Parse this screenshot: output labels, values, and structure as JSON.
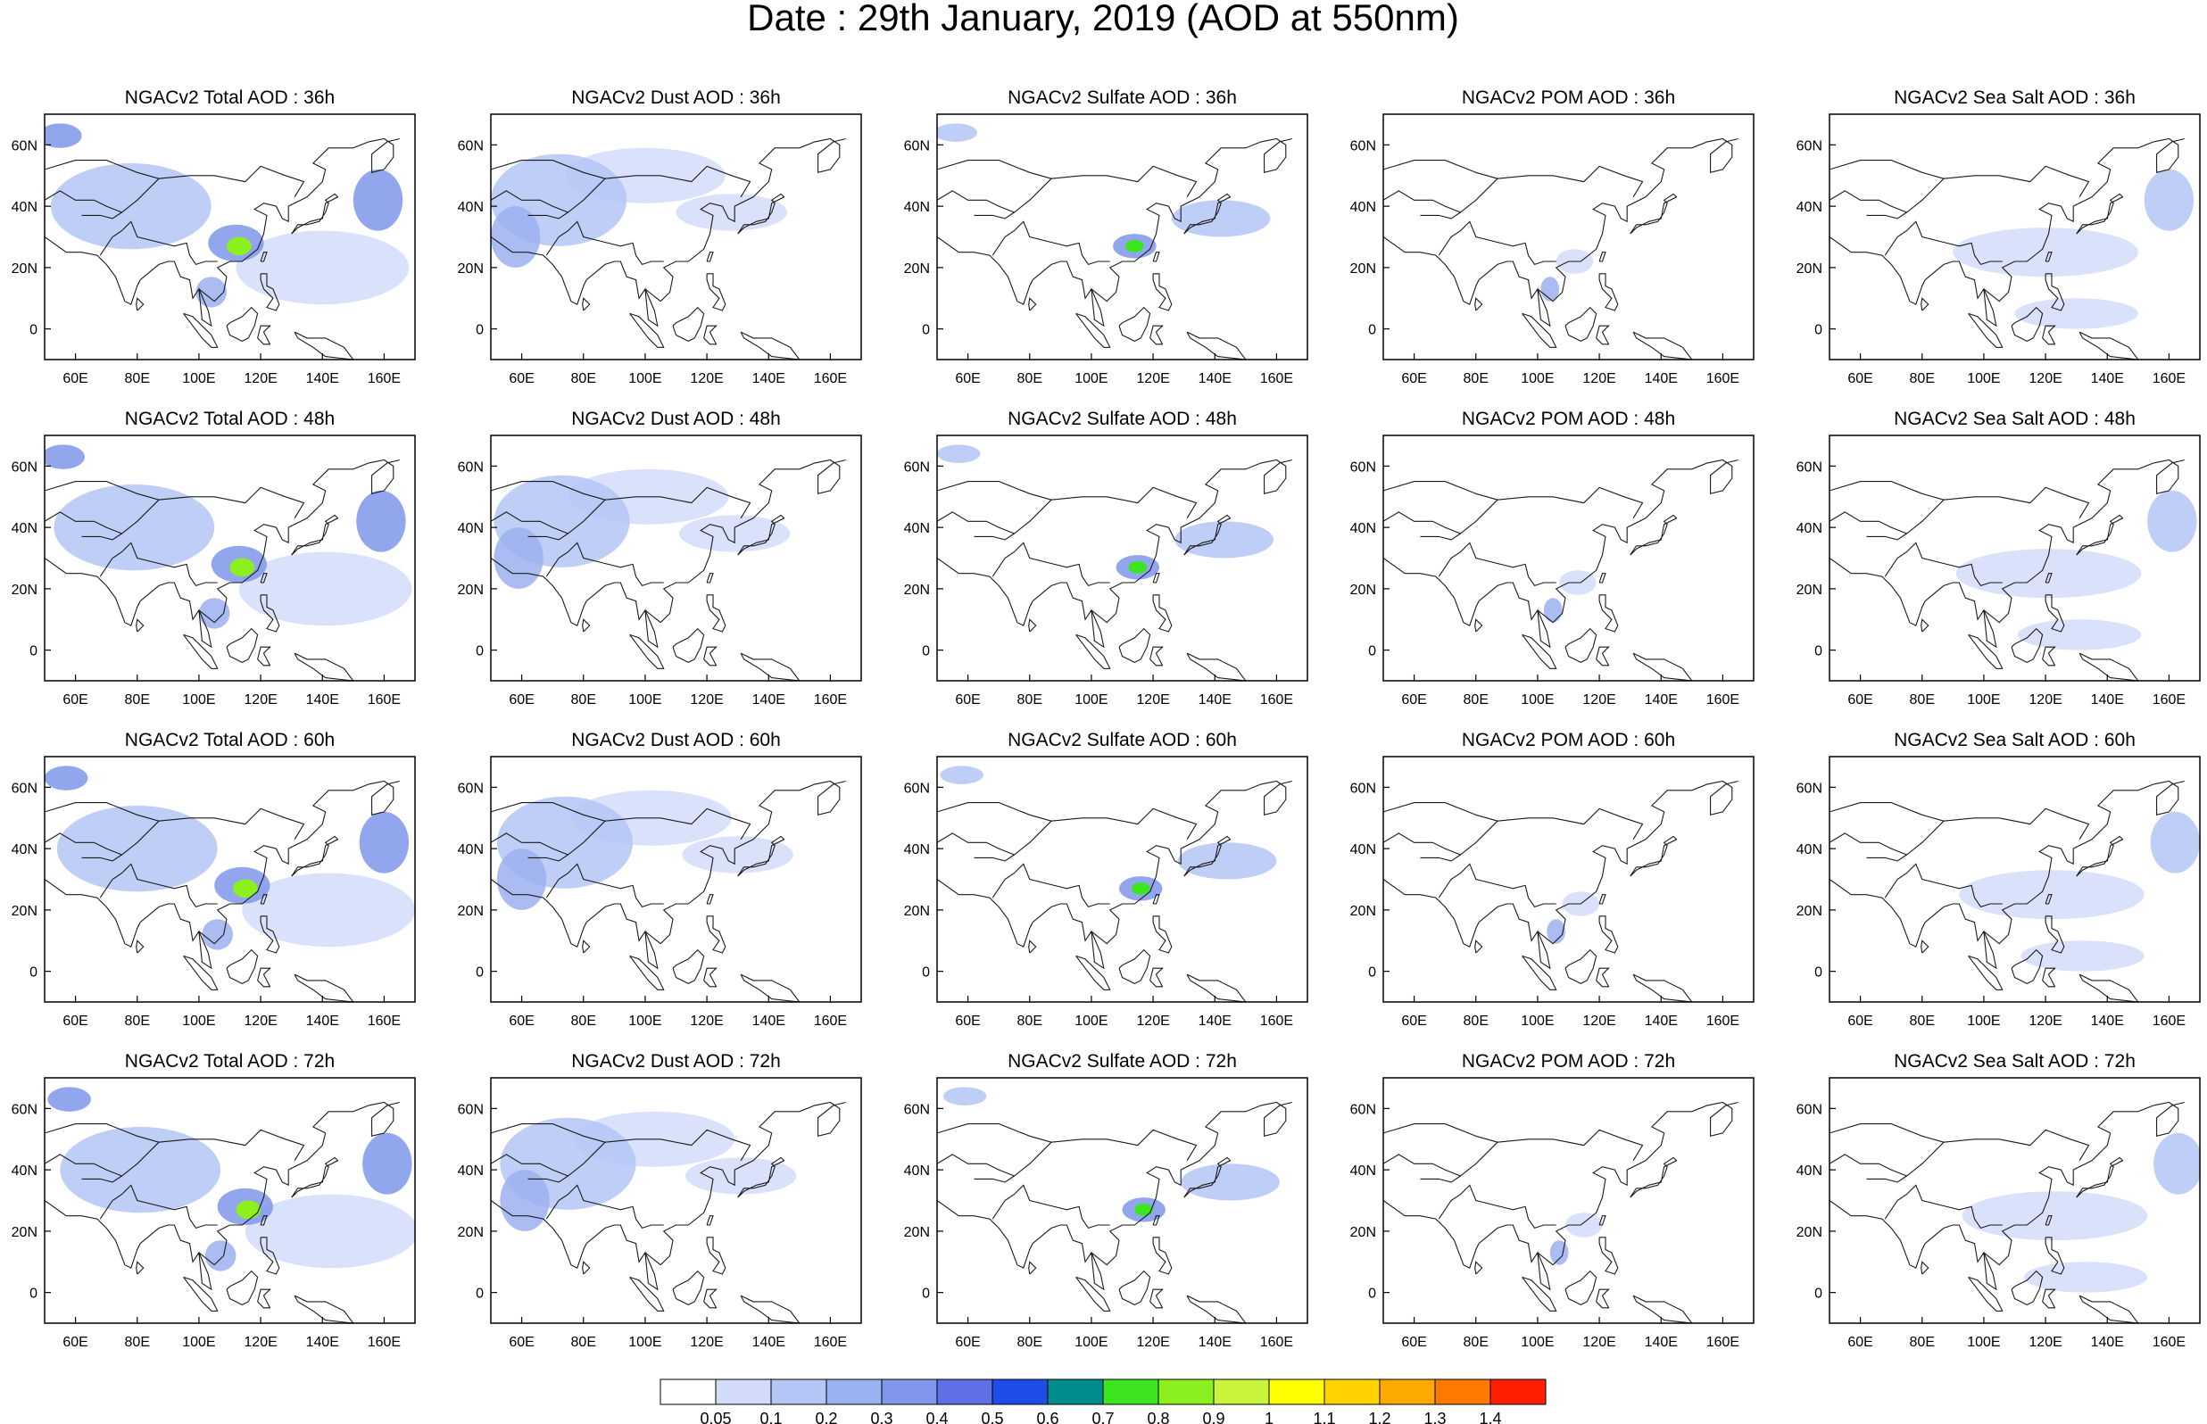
{
  "figure": {
    "title": "Date : 29th January, 2019 (AOD at 550nm)"
  },
  "axes": {
    "lon_ticks": [
      "60E",
      "80E",
      "100E",
      "120E",
      "140E",
      "160E"
    ],
    "lon_values": [
      60,
      80,
      100,
      120,
      140,
      160
    ],
    "lat_ticks": [
      "60N",
      "40N",
      "20N",
      "0"
    ],
    "lat_values": [
      60,
      40,
      20,
      0
    ],
    "lon_range": [
      50,
      170
    ],
    "lat_range": [
      -10,
      70
    ]
  },
  "columns": [
    {
      "key": "total",
      "label": "Total",
      "titles": [
        "NGACv2 Total AOD : 36h",
        "NGACv2 Total AOD : 48h",
        "NGACv2 Total AOD : 60h",
        "NGACv2 Total AOD : 72h"
      ]
    },
    {
      "key": "dust",
      "label": "Dust",
      "titles": [
        "NGACv2 Dust AOD : 36h",
        "NGACv2 Dust AOD : 48h",
        "NGACv2 Dust AOD : 60h",
        "NGACv2 Dust AOD : 72h"
      ]
    },
    {
      "key": "sulfate",
      "label": "Sulfate",
      "titles": [
        "NGACv2 Sulfate AOD : 36h",
        "NGACv2 Sulfate AOD : 48h",
        "NGACv2 Sulfate AOD : 60h",
        "NGACv2 Sulfate AOD : 72h"
      ]
    },
    {
      "key": "pom",
      "label": "POM",
      "titles": [
        "NGACv2 POM AOD : 36h",
        "NGACv2 POM AOD : 48h",
        "NGACv2 POM AOD : 60h",
        "NGACv2 POM AOD : 72h"
      ]
    },
    {
      "key": "seasalt",
      "label": "Sea Salt",
      "titles": [
        "NGACv2 Sea Salt AOD : 36h",
        "NGACv2 Sea Salt AOD : 48h",
        "NGACv2 Sea Salt AOD : 60h",
        "NGACv2 Sea Salt  AOD : 72h"
      ]
    }
  ],
  "colorbar": {
    "labels": [
      "0.05",
      "0.1",
      "0.2",
      "0.3",
      "0.4",
      "0.5",
      "0.6",
      "0.7",
      "0.8",
      "0.9",
      "1",
      "1.1",
      "1.2",
      "1.3",
      "1.4"
    ],
    "colors": [
      "#ffffff",
      "#d2dcfa",
      "#b4c6f5",
      "#9bb0f0",
      "#7f96eb",
      "#5f6fe6",
      "#1e4ee8",
      "#008c8c",
      "#3ce61e",
      "#8cf01e",
      "#c8f53c",
      "#ffff00",
      "#ffd200",
      "#ffaa00",
      "#ff7800",
      "#ff2000"
    ]
  },
  "features": {
    "total": [
      {
        "lon": 55,
        "lat": 63,
        "rx": 7,
        "ry": 4,
        "level": 4
      },
      {
        "lon": 78,
        "lat": 40,
        "rx": 26,
        "ry": 14,
        "level": 2
      },
      {
        "lon": 112,
        "lat": 28,
        "rx": 9,
        "ry": 6,
        "level": 4
      },
      {
        "lon": 113,
        "lat": 27,
        "rx": 4,
        "ry": 3,
        "level": 9
      },
      {
        "lon": 158,
        "lat": 42,
        "rx": 8,
        "ry": 10,
        "level": 4
      },
      {
        "lon": 140,
        "lat": 20,
        "rx": 28,
        "ry": 12,
        "level": 1
      },
      {
        "lon": 104,
        "lat": 12,
        "rx": 5,
        "ry": 5,
        "level": 3
      }
    ],
    "dust": [
      {
        "lon": 72,
        "lat": 42,
        "rx": 22,
        "ry": 15,
        "level": 2
      },
      {
        "lon": 58,
        "lat": 30,
        "rx": 8,
        "ry": 10,
        "level": 3
      },
      {
        "lon": 100,
        "lat": 50,
        "rx": 26,
        "ry": 9,
        "level": 1
      },
      {
        "lon": 128,
        "lat": 38,
        "rx": 18,
        "ry": 6,
        "level": 1
      }
    ],
    "sulfate": [
      {
        "lon": 56,
        "lat": 64,
        "rx": 7,
        "ry": 3,
        "level": 2
      },
      {
        "lon": 114,
        "lat": 27,
        "rx": 7,
        "ry": 4,
        "level": 4
      },
      {
        "lon": 114,
        "lat": 27,
        "rx": 3,
        "ry": 2,
        "level": 8
      },
      {
        "lon": 142,
        "lat": 36,
        "rx": 16,
        "ry": 6,
        "level": 2
      }
    ],
    "pom": [
      {
        "lon": 104,
        "lat": 13,
        "rx": 3,
        "ry": 4,
        "level": 3
      },
      {
        "lon": 112,
        "lat": 22,
        "rx": 6,
        "ry": 4,
        "level": 1
      }
    ],
    "seasalt": [
      {
        "lon": 160,
        "lat": 42,
        "rx": 8,
        "ry": 10,
        "level": 2
      },
      {
        "lon": 120,
        "lat": 25,
        "rx": 30,
        "ry": 8,
        "level": 1
      },
      {
        "lon": 130,
        "lat": 5,
        "rx": 20,
        "ry": 5,
        "level": 1
      }
    ]
  }
}
